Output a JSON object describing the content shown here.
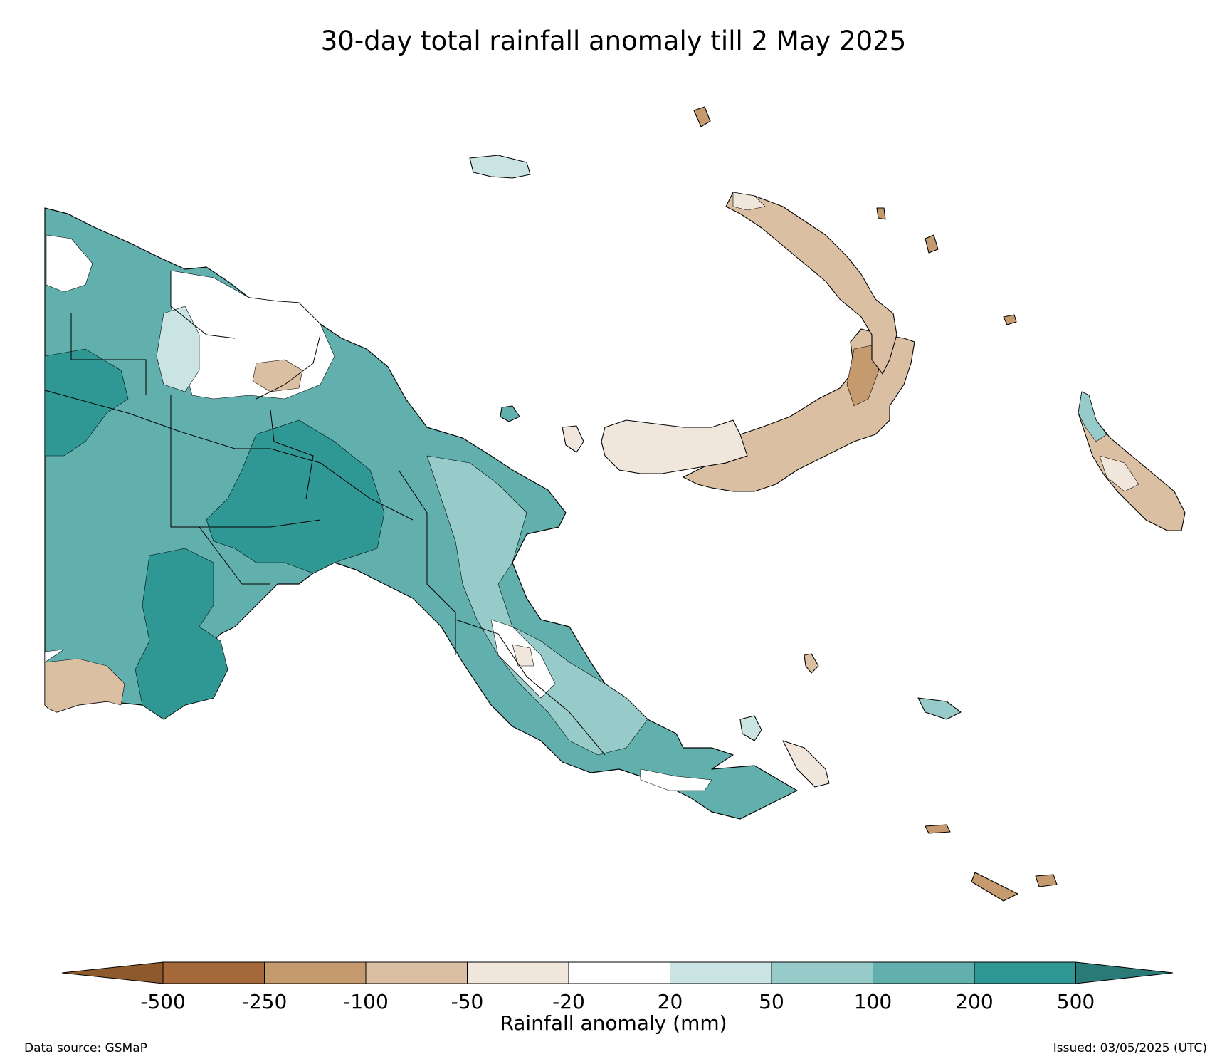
{
  "title": "30-day total rainfall anomaly till 2 May 2025",
  "colorbar": {
    "label": "Rainfall anomaly (mm)",
    "ticks": [
      "-500",
      "-250",
      "-100",
      "-50",
      "-20",
      "20",
      "50",
      "100",
      "200",
      "500"
    ],
    "colors": [
      "#a5683a",
      "#c49a6e",
      "#dbbfa3",
      "#f1e6dc",
      "#ffffff",
      "#c9e4e3",
      "#97cbc9",
      "#62b0ae",
      "#2f9894"
    ],
    "extend_low_color": "#8e5a2c",
    "extend_high_color": "#2a7b78"
  },
  "footer": {
    "source": "Data source: GSMaP",
    "issued": "Issued: 03/05/2025 (UTC)"
  },
  "regions": [
    {
      "name": "western-mainland",
      "anomaly_class": "100-200"
    },
    {
      "name": "central-highlands",
      "anomaly_class": "200-500"
    },
    {
      "name": "northern-coast",
      "anomaly_class": "-20-20"
    },
    {
      "name": "south-west-lowlands",
      "anomaly_class": "-100--50"
    },
    {
      "name": "papuan-peninsula",
      "anomaly_class": "50-100"
    },
    {
      "name": "new-britain-east",
      "anomaly_class": "-250--100"
    },
    {
      "name": "new-britain-west",
      "anomaly_class": "-50--20"
    },
    {
      "name": "new-ireland",
      "anomaly_class": "-100--50"
    },
    {
      "name": "bougainville",
      "anomaly_class": "-100--50"
    },
    {
      "name": "manus",
      "anomaly_class": "20-50"
    },
    {
      "name": "milne-bay-islands",
      "anomaly_class": "-250--100"
    }
  ]
}
